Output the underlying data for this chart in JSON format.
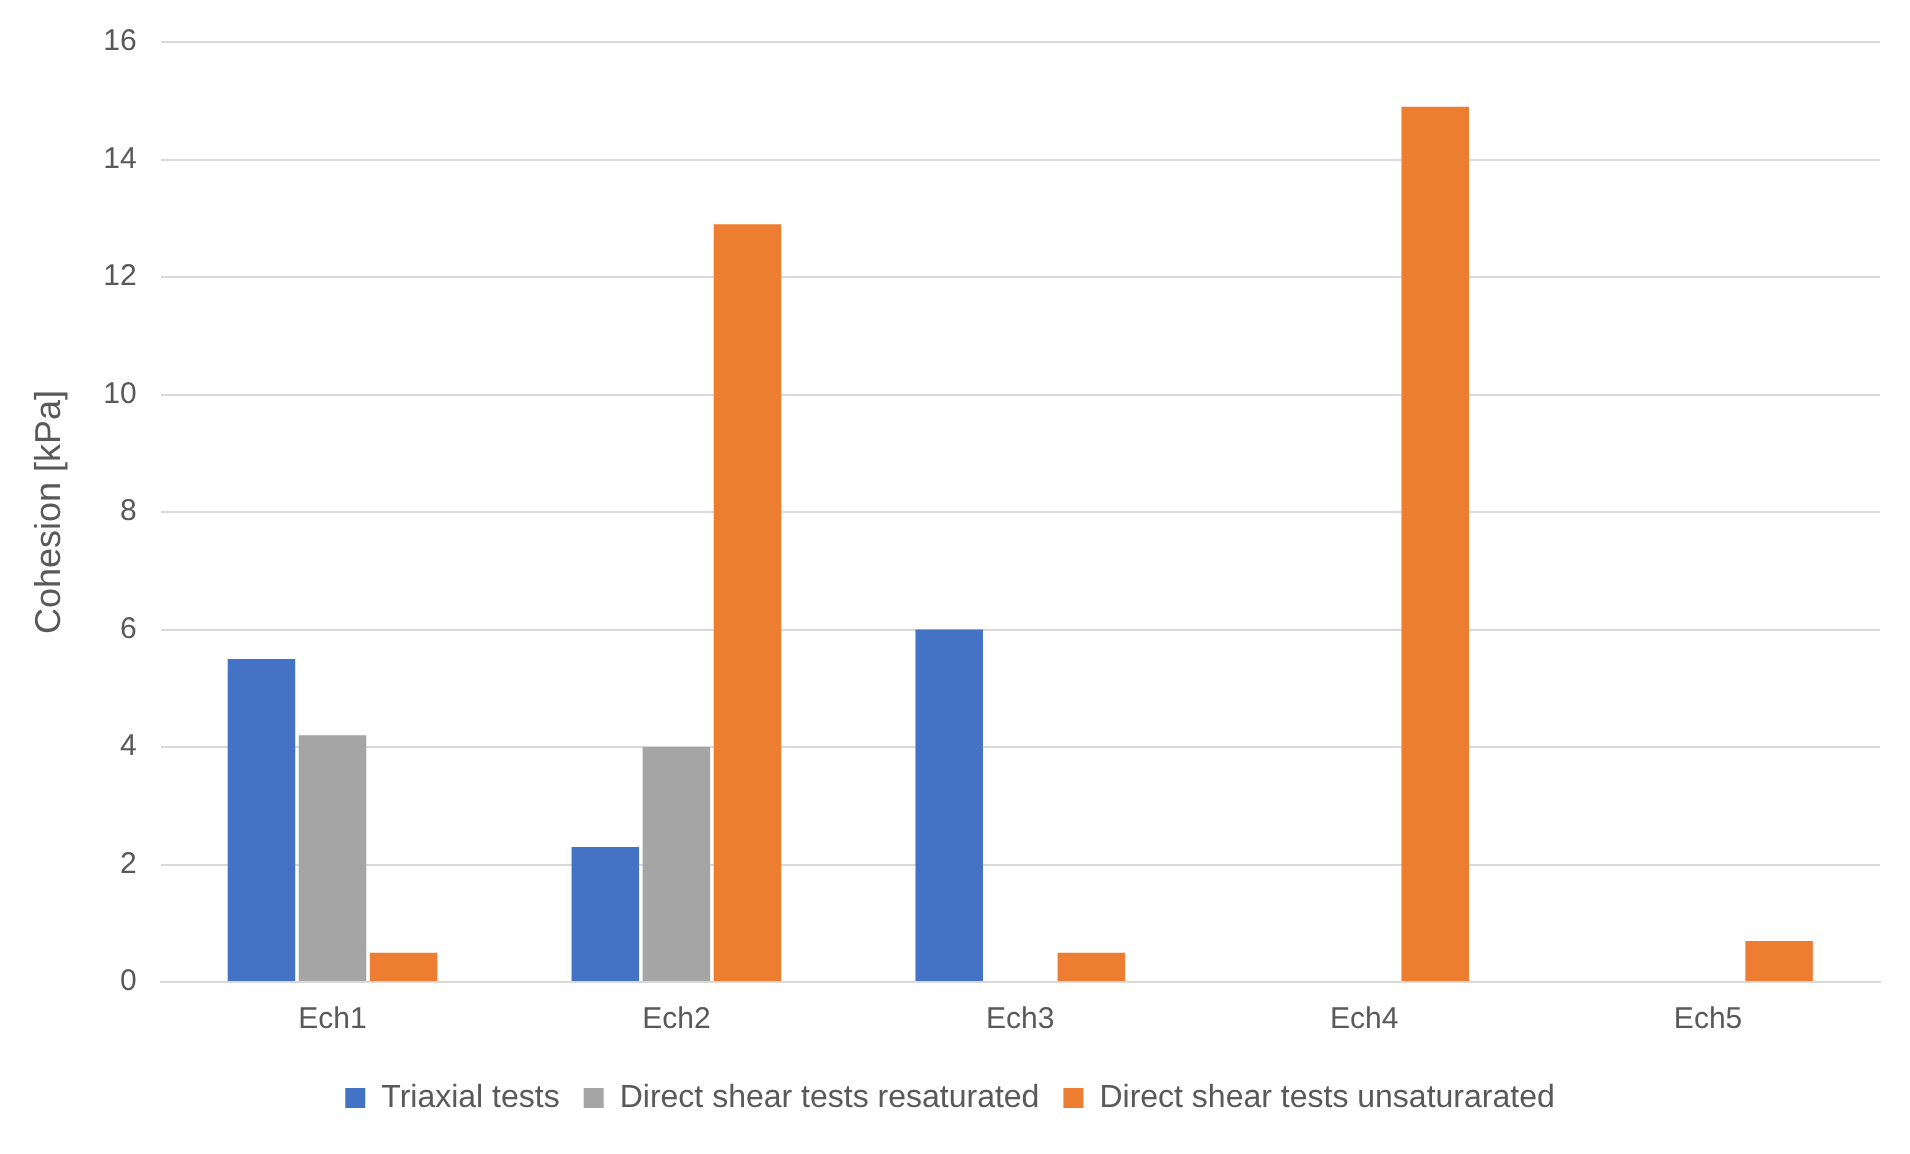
{
  "chart_data": {
    "type": "bar",
    "ylabel": "Cohesion [kPa]",
    "categories": [
      "Ech1",
      "Ech2",
      "Ech3",
      "Ech4",
      "Ech5"
    ],
    "series": [
      {
        "name": "Triaxial tests",
        "color": "#4472c4",
        "values": [
          5.5,
          2.3,
          6.0,
          null,
          null
        ]
      },
      {
        "name": "Direct shear tests resaturated",
        "color": "#a5a5a5",
        "values": [
          4.2,
          4.0,
          null,
          null,
          null
        ]
      },
      {
        "name": "Direct shear tests unsaturarated",
        "color": "#ed7d31",
        "values": [
          0.5,
          12.9,
          0.5,
          14.9,
          0.7
        ]
      }
    ],
    "ylim": [
      0,
      16
    ],
    "yticks": [
      0,
      2,
      4,
      6,
      8,
      10,
      12,
      14,
      16
    ],
    "grid": "y",
    "legend": "bottom"
  }
}
